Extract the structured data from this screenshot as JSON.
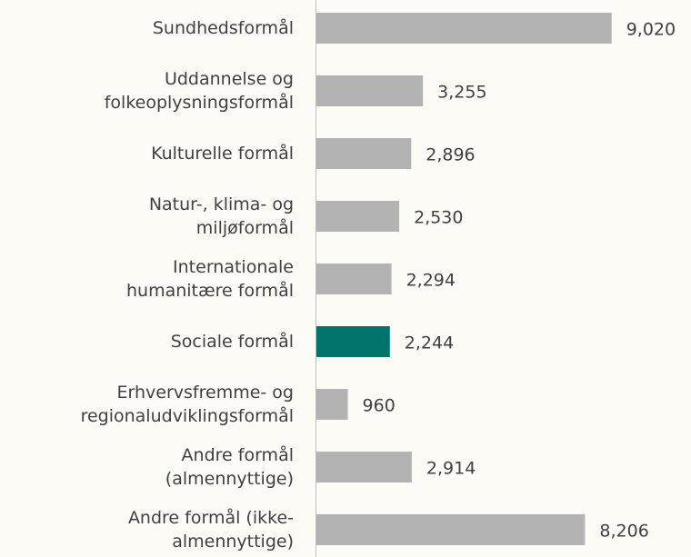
{
  "chart_data": {
    "type": "barh",
    "categories": [
      "Sundhedsformål",
      "Uddannelse og\nfolkeoplysningsformål",
      "Kulturelle formål",
      "Natur-, klima- og\nmiljøformål",
      "Internationale\nhumanitære formål",
      "Sociale formål",
      "Erhvervsfremme- og\nregionaludviklingsformål",
      "Andre formål\n(almennyttige)",
      "Andre formål (ikke-\nalmennyttige)"
    ],
    "values": [
      9020,
      3255,
      2896,
      2530,
      2294,
      2244,
      960,
      2914,
      8206
    ],
    "value_labels": [
      "9,020",
      "3,255",
      "2,896",
      "2,530",
      "2,294",
      "2,244",
      "960",
      "2,914",
      "8,206"
    ],
    "colors": [
      "#b3b3b3",
      "#b3b3b3",
      "#b3b3b3",
      "#b3b3b3",
      "#b3b3b3",
      "#00736b",
      "#b3b3b3",
      "#b3b3b3",
      "#b3b3b3"
    ],
    "xlim": [
      0,
      10000
    ]
  }
}
